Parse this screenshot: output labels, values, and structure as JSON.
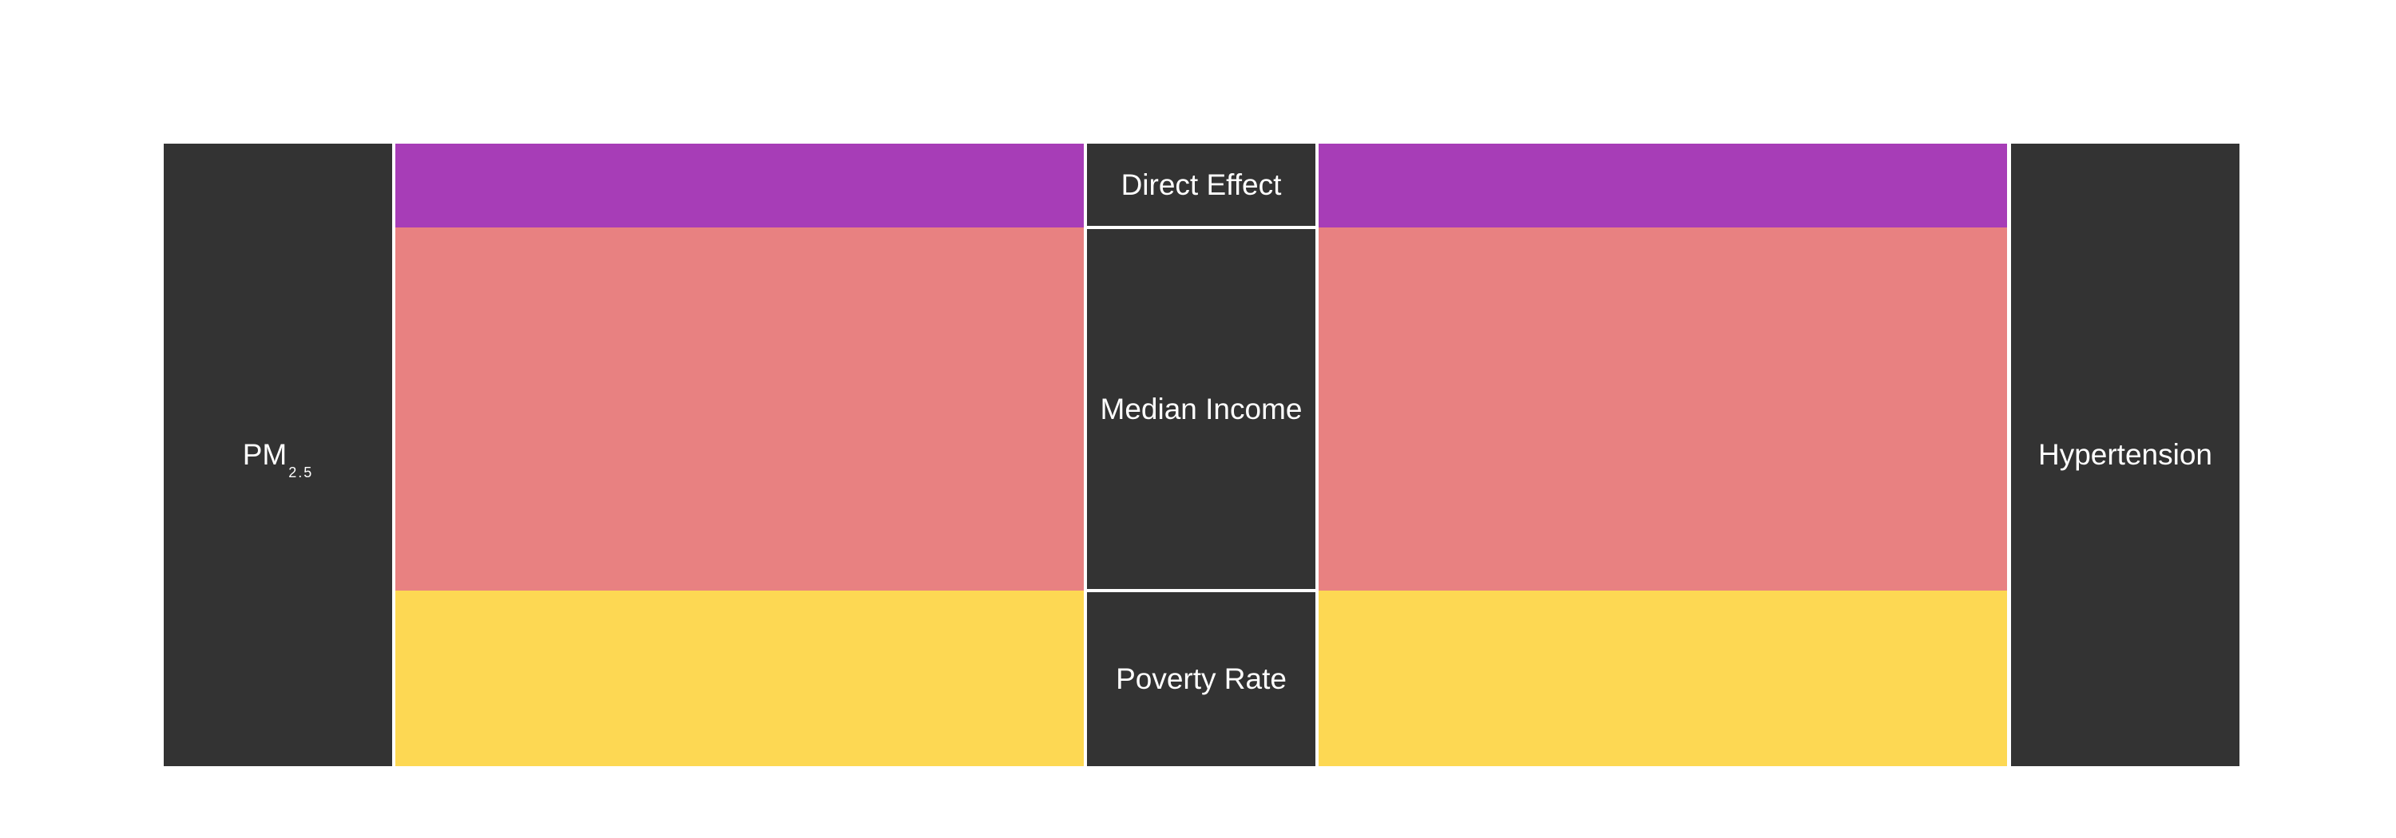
{
  "chart_data": {
    "type": "sankey",
    "title": "",
    "source": {
      "label": "PM",
      "subscript": "2.5"
    },
    "target": {
      "label": "Hypertension"
    },
    "node_color": "#333333",
    "paths": [
      {
        "name": "Direct Effect",
        "share": 0.135,
        "color": "#A73DB7"
      },
      {
        "name": "Median Income",
        "share": 0.583,
        "color": "#E88181"
      },
      {
        "name": "Poverty Rate",
        "share": 0.282,
        "color": "#FDD853"
      }
    ]
  }
}
